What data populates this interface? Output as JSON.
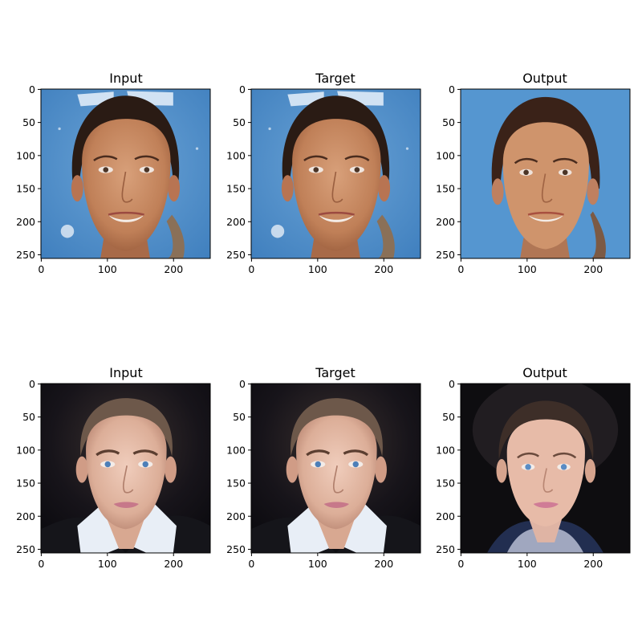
{
  "figure": {
    "panels": [
      {
        "title": "Input",
        "subject": "woman-blue-backdrop",
        "role": "input"
      },
      {
        "title": "Target",
        "subject": "woman-blue-backdrop",
        "role": "target"
      },
      {
        "title": "Output",
        "subject": "woman-blue-backdrop",
        "role": "output"
      },
      {
        "title": "Input",
        "subject": "man-dark-backdrop",
        "role": "input"
      },
      {
        "title": "Target",
        "subject": "man-dark-backdrop",
        "role": "target"
      },
      {
        "title": "Output",
        "subject": "man-dark-backdrop",
        "role": "output"
      }
    ],
    "x_ticks": [
      "0",
      "100",
      "200"
    ],
    "y_ticks": [
      "0",
      "50",
      "100",
      "150",
      "200",
      "250"
    ],
    "x_tick_values": [
      0,
      100,
      200
    ],
    "y_tick_values": [
      0,
      50,
      100,
      150,
      200,
      250
    ],
    "image_extent": [
      0,
      256
    ],
    "colors": {
      "axis": "#000000",
      "background": "#ffffff",
      "blue_backdrop": "#4f8fcc",
      "dark_backdrop": "#0e0d10",
      "skin_warm": "#c98a64",
      "skin_fair": "#e3b8a4",
      "hair_dark": "#2a1b14",
      "hair_light": "#8a7058",
      "shirt_white": "#e8eef6"
    }
  }
}
